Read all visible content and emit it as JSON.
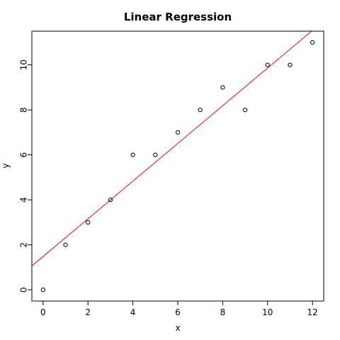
{
  "chart_data": {
    "type": "scatter",
    "title": "Linear Regression",
    "xlabel": "x",
    "ylabel": "y",
    "xlim": [
      -0.5,
      12.5
    ],
    "ylim": [
      -0.5,
      11.5
    ],
    "x_ticks": [
      0,
      2,
      4,
      6,
      8,
      10,
      12
    ],
    "y_ticks": [
      0,
      2,
      4,
      6,
      8,
      10
    ],
    "points": [
      {
        "x": 0,
        "y": 0
      },
      {
        "x": 1,
        "y": 2
      },
      {
        "x": 2,
        "y": 3
      },
      {
        "x": 3,
        "y": 4
      },
      {
        "x": 4,
        "y": 6
      },
      {
        "x": 5,
        "y": 6
      },
      {
        "x": 6,
        "y": 7
      },
      {
        "x": 7,
        "y": 8
      },
      {
        "x": 8,
        "y": 9
      },
      {
        "x": 9,
        "y": 8
      },
      {
        "x": 10,
        "y": 10
      },
      {
        "x": 11,
        "y": 10
      },
      {
        "x": 12,
        "y": 11
      }
    ],
    "regression_line": {
      "intercept": 1.48,
      "slope": 0.838,
      "color": "#ff0000"
    },
    "point_color": "#000000",
    "grid": false
  }
}
